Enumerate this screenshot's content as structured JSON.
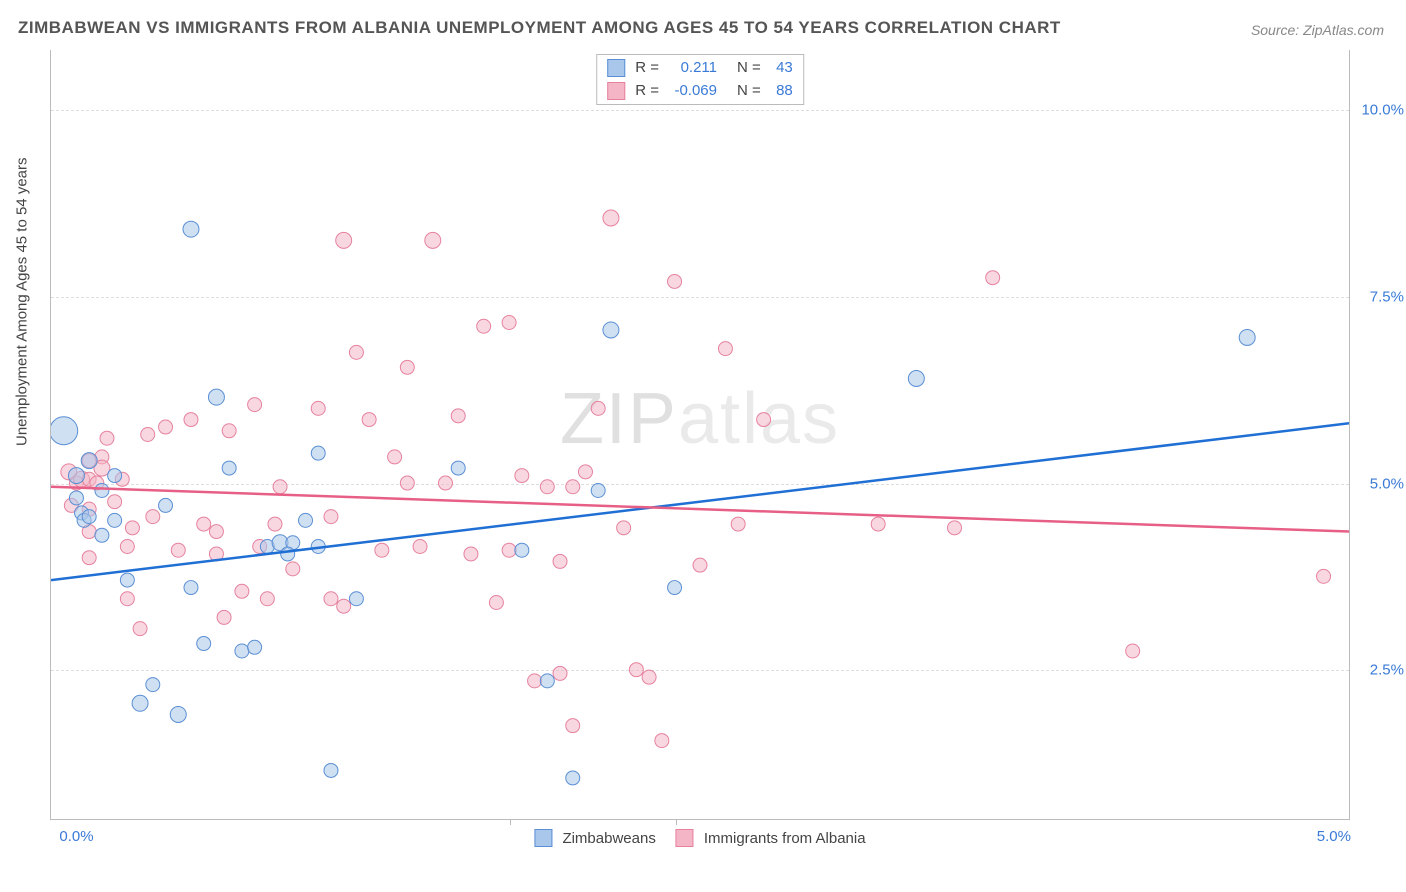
{
  "title": "ZIMBABWEAN VS IMMIGRANTS FROM ALBANIA UNEMPLOYMENT AMONG AGES 45 TO 54 YEARS CORRELATION CHART",
  "source": "Source: ZipAtlas.com",
  "ylabel": "Unemployment Among Ages 45 to 54 years",
  "watermark_a": "ZIP",
  "watermark_b": "atlas",
  "chart": {
    "type": "scatter",
    "xlim": [
      -0.1,
      5.0
    ],
    "ylim": [
      0.5,
      10.8
    ],
    "yticks": [
      2.5,
      5.0,
      7.5,
      10.0
    ],
    "ytick_labels": [
      "2.5%",
      "5.0%",
      "7.5%",
      "10.0%"
    ],
    "xticks": [
      0.0,
      5.0
    ],
    "xtick_labels": [
      "0.0%",
      "5.0%"
    ],
    "background_color": "#ffffff",
    "grid_color": "#dddddd"
  },
  "series": [
    {
      "name": "Zimbabweans",
      "label": "Zimbabweans",
      "fill": "#a9c7ea",
      "stroke": "#5a8fd4",
      "fill_opacity": 0.55,
      "R_label": "R =",
      "R": "0.211",
      "N_label": "N =",
      "N": "43",
      "trend": {
        "x1": -0.1,
        "y1": 3.7,
        "x2": 5.0,
        "y2": 5.8,
        "color": "#1f6fd4",
        "width": 2.5
      },
      "points": [
        {
          "x": -0.05,
          "y": 5.7,
          "r": 14
        },
        {
          "x": 0.0,
          "y": 5.1,
          "r": 8
        },
        {
          "x": 0.0,
          "y": 4.8,
          "r": 7
        },
        {
          "x": 0.02,
          "y": 4.6,
          "r": 7
        },
        {
          "x": 0.03,
          "y": 4.5,
          "r": 7
        },
        {
          "x": 0.05,
          "y": 5.3,
          "r": 8
        },
        {
          "x": 0.05,
          "y": 4.55,
          "r": 7
        },
        {
          "x": 0.1,
          "y": 4.3,
          "r": 7
        },
        {
          "x": 0.1,
          "y": 4.9,
          "r": 7
        },
        {
          "x": 0.15,
          "y": 5.1,
          "r": 7
        },
        {
          "x": 0.15,
          "y": 4.5,
          "r": 7
        },
        {
          "x": 0.2,
          "y": 3.7,
          "r": 7
        },
        {
          "x": 0.25,
          "y": 2.05,
          "r": 8
        },
        {
          "x": 0.3,
          "y": 2.3,
          "r": 7
        },
        {
          "x": 0.35,
          "y": 4.7,
          "r": 7
        },
        {
          "x": 0.4,
          "y": 1.9,
          "r": 8
        },
        {
          "x": 0.45,
          "y": 8.4,
          "r": 8
        },
        {
          "x": 0.45,
          "y": 3.6,
          "r": 7
        },
        {
          "x": 0.5,
          "y": 2.85,
          "r": 7
        },
        {
          "x": 0.55,
          "y": 6.15,
          "r": 8
        },
        {
          "x": 0.6,
          "y": 5.2,
          "r": 7
        },
        {
          "x": 0.65,
          "y": 2.75,
          "r": 7
        },
        {
          "x": 0.7,
          "y": 2.8,
          "r": 7
        },
        {
          "x": 0.75,
          "y": 4.15,
          "r": 7
        },
        {
          "x": 0.8,
          "y": 4.2,
          "r": 8
        },
        {
          "x": 0.85,
          "y": 4.2,
          "r": 7
        },
        {
          "x": 0.83,
          "y": 4.05,
          "r": 7
        },
        {
          "x": 0.9,
          "y": 4.5,
          "r": 7
        },
        {
          "x": 0.95,
          "y": 4.15,
          "r": 7
        },
        {
          "x": 0.95,
          "y": 5.4,
          "r": 7
        },
        {
          "x": 1.0,
          "y": 1.15,
          "r": 7
        },
        {
          "x": 1.1,
          "y": 3.45,
          "r": 7
        },
        {
          "x": 1.5,
          "y": 5.2,
          "r": 7
        },
        {
          "x": 1.75,
          "y": 4.1,
          "r": 7
        },
        {
          "x": 1.85,
          "y": 2.35,
          "r": 7
        },
        {
          "x": 1.95,
          "y": 1.05,
          "r": 7
        },
        {
          "x": 2.05,
          "y": 4.9,
          "r": 7
        },
        {
          "x": 2.1,
          "y": 7.05,
          "r": 8
        },
        {
          "x": 2.35,
          "y": 3.6,
          "r": 7
        },
        {
          "x": 3.3,
          "y": 6.4,
          "r": 8
        },
        {
          "x": 4.6,
          "y": 6.95,
          "r": 8
        }
      ]
    },
    {
      "name": "Immigrants from Albania",
      "label": "Immigrants from Albania",
      "fill": "#f4b6c6",
      "stroke": "#e6829e",
      "fill_opacity": 0.55,
      "R_label": "R =",
      "R": "-0.069",
      "N_label": "N =",
      "N": "88",
      "trend": {
        "x1": -0.1,
        "y1": 4.95,
        "x2": 5.0,
        "y2": 4.35,
        "color": "#e75f86",
        "width": 2.5
      },
      "points": [
        {
          "x": -0.03,
          "y": 5.15,
          "r": 8
        },
        {
          "x": -0.02,
          "y": 4.7,
          "r": 7
        },
        {
          "x": 0.0,
          "y": 5.0,
          "r": 7
        },
        {
          "x": 0.02,
          "y": 5.05,
          "r": 8
        },
        {
          "x": 0.05,
          "y": 5.3,
          "r": 7
        },
        {
          "x": 0.05,
          "y": 5.05,
          "r": 7
        },
        {
          "x": 0.05,
          "y": 4.65,
          "r": 7
        },
        {
          "x": 0.05,
          "y": 4.35,
          "r": 7
        },
        {
          "x": 0.05,
          "y": 4.0,
          "r": 7
        },
        {
          "x": 0.08,
          "y": 5.0,
          "r": 7
        },
        {
          "x": 0.1,
          "y": 5.35,
          "r": 7
        },
        {
          "x": 0.1,
          "y": 5.2,
          "r": 8
        },
        {
          "x": 0.12,
          "y": 5.6,
          "r": 7
        },
        {
          "x": 0.15,
          "y": 4.75,
          "r": 7
        },
        {
          "x": 0.18,
          "y": 5.05,
          "r": 7
        },
        {
          "x": 0.2,
          "y": 3.45,
          "r": 7
        },
        {
          "x": 0.2,
          "y": 4.15,
          "r": 7
        },
        {
          "x": 0.22,
          "y": 4.4,
          "r": 7
        },
        {
          "x": 0.25,
          "y": 3.05,
          "r": 7
        },
        {
          "x": 0.28,
          "y": 5.65,
          "r": 7
        },
        {
          "x": 0.3,
          "y": 4.55,
          "r": 7
        },
        {
          "x": 0.35,
          "y": 5.75,
          "r": 7
        },
        {
          "x": 0.4,
          "y": 4.1,
          "r": 7
        },
        {
          "x": 0.45,
          "y": 5.85,
          "r": 7
        },
        {
          "x": 0.5,
          "y": 4.45,
          "r": 7
        },
        {
          "x": 0.55,
          "y": 4.05,
          "r": 7
        },
        {
          "x": 0.55,
          "y": 4.35,
          "r": 7
        },
        {
          "x": 0.58,
          "y": 3.2,
          "r": 7
        },
        {
          "x": 0.6,
          "y": 5.7,
          "r": 7
        },
        {
          "x": 0.65,
          "y": 3.55,
          "r": 7
        },
        {
          "x": 0.7,
          "y": 6.05,
          "r": 7
        },
        {
          "x": 0.72,
          "y": 4.15,
          "r": 7
        },
        {
          "x": 0.75,
          "y": 3.45,
          "r": 7
        },
        {
          "x": 0.78,
          "y": 4.45,
          "r": 7
        },
        {
          "x": 0.8,
          "y": 4.95,
          "r": 7
        },
        {
          "x": 0.85,
          "y": 3.85,
          "r": 7
        },
        {
          "x": 0.95,
          "y": 6.0,
          "r": 7
        },
        {
          "x": 1.0,
          "y": 3.45,
          "r": 7
        },
        {
          "x": 1.0,
          "y": 4.55,
          "r": 7
        },
        {
          "x": 1.05,
          "y": 8.25,
          "r": 8
        },
        {
          "x": 1.05,
          "y": 3.35,
          "r": 7
        },
        {
          "x": 1.1,
          "y": 6.75,
          "r": 7
        },
        {
          "x": 1.15,
          "y": 5.85,
          "r": 7
        },
        {
          "x": 1.2,
          "y": 4.1,
          "r": 7
        },
        {
          "x": 1.25,
          "y": 5.35,
          "r": 7
        },
        {
          "x": 1.3,
          "y": 6.55,
          "r": 7
        },
        {
          "x": 1.3,
          "y": 5.0,
          "r": 7
        },
        {
          "x": 1.35,
          "y": 4.15,
          "r": 7
        },
        {
          "x": 1.4,
          "y": 8.25,
          "r": 8
        },
        {
          "x": 1.45,
          "y": 5.0,
          "r": 7
        },
        {
          "x": 1.5,
          "y": 5.9,
          "r": 7
        },
        {
          "x": 1.55,
          "y": 4.05,
          "r": 7
        },
        {
          "x": 1.6,
          "y": 7.1,
          "r": 7
        },
        {
          "x": 1.65,
          "y": 3.4,
          "r": 7
        },
        {
          "x": 1.7,
          "y": 4.1,
          "r": 7
        },
        {
          "x": 1.7,
          "y": 7.15,
          "r": 7
        },
        {
          "x": 1.75,
          "y": 5.1,
          "r": 7
        },
        {
          "x": 1.8,
          "y": 2.35,
          "r": 7
        },
        {
          "x": 1.85,
          "y": 4.95,
          "r": 7
        },
        {
          "x": 1.9,
          "y": 3.95,
          "r": 7
        },
        {
          "x": 1.9,
          "y": 2.45,
          "r": 7
        },
        {
          "x": 1.95,
          "y": 1.75,
          "r": 7
        },
        {
          "x": 1.95,
          "y": 4.95,
          "r": 7
        },
        {
          "x": 2.0,
          "y": 5.15,
          "r": 7
        },
        {
          "x": 2.05,
          "y": 6.0,
          "r": 7
        },
        {
          "x": 2.1,
          "y": 8.55,
          "r": 8
        },
        {
          "x": 2.15,
          "y": 4.4,
          "r": 7
        },
        {
          "x": 2.2,
          "y": 2.5,
          "r": 7
        },
        {
          "x": 2.25,
          "y": 2.4,
          "r": 7
        },
        {
          "x": 2.3,
          "y": 1.55,
          "r": 7
        },
        {
          "x": 2.35,
          "y": 7.7,
          "r": 7
        },
        {
          "x": 2.45,
          "y": 3.9,
          "r": 7
        },
        {
          "x": 2.55,
          "y": 6.8,
          "r": 7
        },
        {
          "x": 2.6,
          "y": 4.45,
          "r": 7
        },
        {
          "x": 2.7,
          "y": 5.85,
          "r": 7
        },
        {
          "x": 3.15,
          "y": 4.45,
          "r": 7
        },
        {
          "x": 3.45,
          "y": 4.4,
          "r": 7
        },
        {
          "x": 3.6,
          "y": 7.75,
          "r": 7
        },
        {
          "x": 4.15,
          "y": 2.75,
          "r": 7
        },
        {
          "x": 4.9,
          "y": 3.75,
          "r": 7
        }
      ]
    }
  ]
}
